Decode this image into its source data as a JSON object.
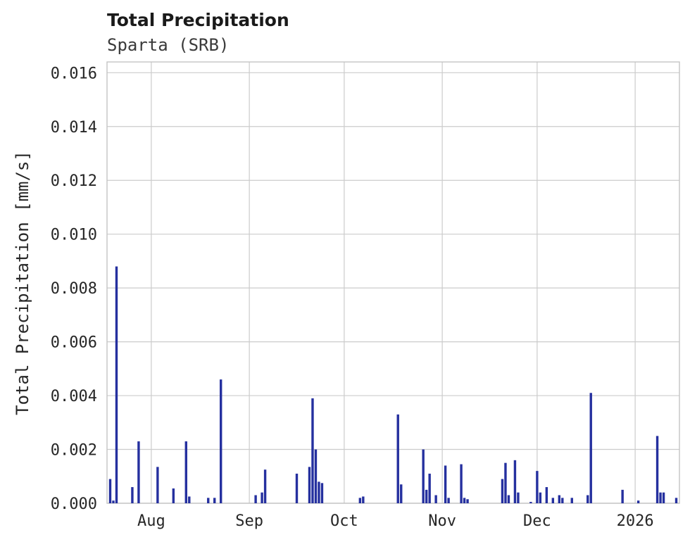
{
  "chart_data": {
    "type": "bar",
    "title": "Total Precipitation",
    "subtitle": "Sparta (SRB)",
    "ylabel": "Total Precipitation [mm/s]",
    "xlabel": "",
    "ylim": [
      0,
      0.0164
    ],
    "yticks": [
      0.0,
      0.002,
      0.004,
      0.006,
      0.008,
      0.01,
      0.012,
      0.014,
      0.016
    ],
    "ytick_labels": [
      "0.000",
      "0.002",
      "0.004",
      "0.006",
      "0.008",
      "0.010",
      "0.012",
      "0.014",
      "0.016"
    ],
    "x_domain_days": [
      0,
      181
    ],
    "xticks": [
      {
        "day": 14,
        "label": "Aug"
      },
      {
        "day": 45,
        "label": "Sep"
      },
      {
        "day": 75,
        "label": "Oct"
      },
      {
        "day": 106,
        "label": "Nov"
      },
      {
        "day": 136,
        "label": "Dec"
      },
      {
        "day": 167,
        "label": "2026"
      }
    ],
    "grid": true,
    "legend": "none",
    "colors": {
      "bar": "#25309f",
      "grid": "#cccccc",
      "frame": "#c4c4c4",
      "tick_text": "#262626",
      "title_text": "#1a1a1a",
      "subtitle_text": "#3a3a3a"
    },
    "series": [
      {
        "name": "Total Precipitation",
        "points": [
          [
            1,
            0.0009
          ],
          [
            2,
            0.0001
          ],
          [
            3,
            0.0088
          ],
          [
            8,
            0.0006
          ],
          [
            10,
            0.0023
          ],
          [
            16,
            0.00135
          ],
          [
            21,
            0.00055
          ],
          [
            25,
            0.0023
          ],
          [
            26,
            0.00025
          ],
          [
            32,
            0.0002
          ],
          [
            34,
            0.0002
          ],
          [
            36,
            0.0046
          ],
          [
            47,
            0.0003
          ],
          [
            49,
            0.0004
          ],
          [
            50,
            0.00125
          ],
          [
            60,
            0.0011
          ],
          [
            64,
            0.00135
          ],
          [
            65,
            0.0039
          ],
          [
            66,
            0.002
          ],
          [
            67,
            0.0008
          ],
          [
            68,
            0.00075
          ],
          [
            80,
            0.0002
          ],
          [
            81,
            0.00025
          ],
          [
            92,
            0.0033
          ],
          [
            93,
            0.0007
          ],
          [
            100,
            0.002
          ],
          [
            101,
            0.0005
          ],
          [
            102,
            0.0011
          ],
          [
            104,
            0.0003
          ],
          [
            107,
            0.0014
          ],
          [
            108,
            0.0002
          ],
          [
            112,
            0.00145
          ],
          [
            113,
            0.0002
          ],
          [
            114,
            0.00015
          ],
          [
            125,
            0.0009
          ],
          [
            126,
            0.0015
          ],
          [
            127,
            0.0003
          ],
          [
            129,
            0.0016
          ],
          [
            130,
            0.0004
          ],
          [
            134,
            5e-05
          ],
          [
            136,
            0.0012
          ],
          [
            137,
            0.0004
          ],
          [
            139,
            0.0006
          ],
          [
            141,
            0.0002
          ],
          [
            143,
            0.0003
          ],
          [
            144,
            0.0002
          ],
          [
            147,
            0.0002
          ],
          [
            152,
            0.0003
          ],
          [
            153,
            0.0041
          ],
          [
            163,
            0.0005
          ],
          [
            168,
            0.0001
          ],
          [
            174,
            0.0025
          ],
          [
            175,
            0.0004
          ],
          [
            176,
            0.0004
          ],
          [
            180,
            0.0002
          ]
        ]
      }
    ]
  }
}
